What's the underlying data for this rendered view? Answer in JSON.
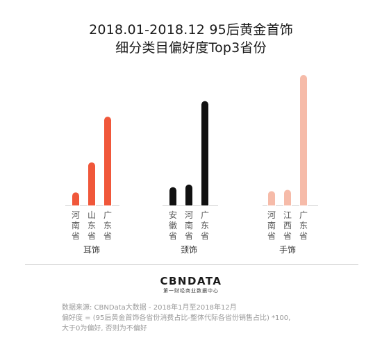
{
  "title": {
    "line1": "2018.01-2018.12  95后黄金首饰",
    "line2": "细分类目偏好度Top3省份"
  },
  "colors": {
    "earrings": "#f0573a",
    "necklace": "#111111",
    "bracelet": "#f6bba9",
    "axis": "#cfcfcf"
  },
  "chart_data": {
    "type": "bar",
    "title": "2018.01-2018.12  95后黄金首饰 细分类目偏好度Top3省份",
    "xlabel": "",
    "ylabel": "",
    "axis_visible": false,
    "legend": "none",
    "grid": false,
    "groups": [
      {
        "name": "耳饰",
        "color_key": "earrings",
        "categories": [
          "河南省",
          "山东省",
          "广东省"
        ],
        "values": [
          10,
          33,
          68
        ]
      },
      {
        "name": "颈饰",
        "color_key": "necklace",
        "categories": [
          "安徽省",
          "河南省",
          "广东省"
        ],
        "values": [
          14,
          16,
          80
        ]
      },
      {
        "name": "手饰",
        "color_key": "bracelet",
        "categories": [
          "河南省",
          "江西省",
          "广东省"
        ],
        "values": [
          11,
          12,
          100
        ]
      }
    ],
    "ylim": [
      0,
      100
    ]
  },
  "logo": {
    "text": "CBNDATA",
    "subtitle": "第一财经商业数据中心"
  },
  "notes": {
    "line1": "数据来源: CBNData大数据 - 2018年1月至2018年12月",
    "line2": "偏好度 = (95后黄金首饰各省份消费占比-整体代际各省份销售占比) *100,",
    "line3": "大于0为偏好, 否则为不偏好"
  }
}
